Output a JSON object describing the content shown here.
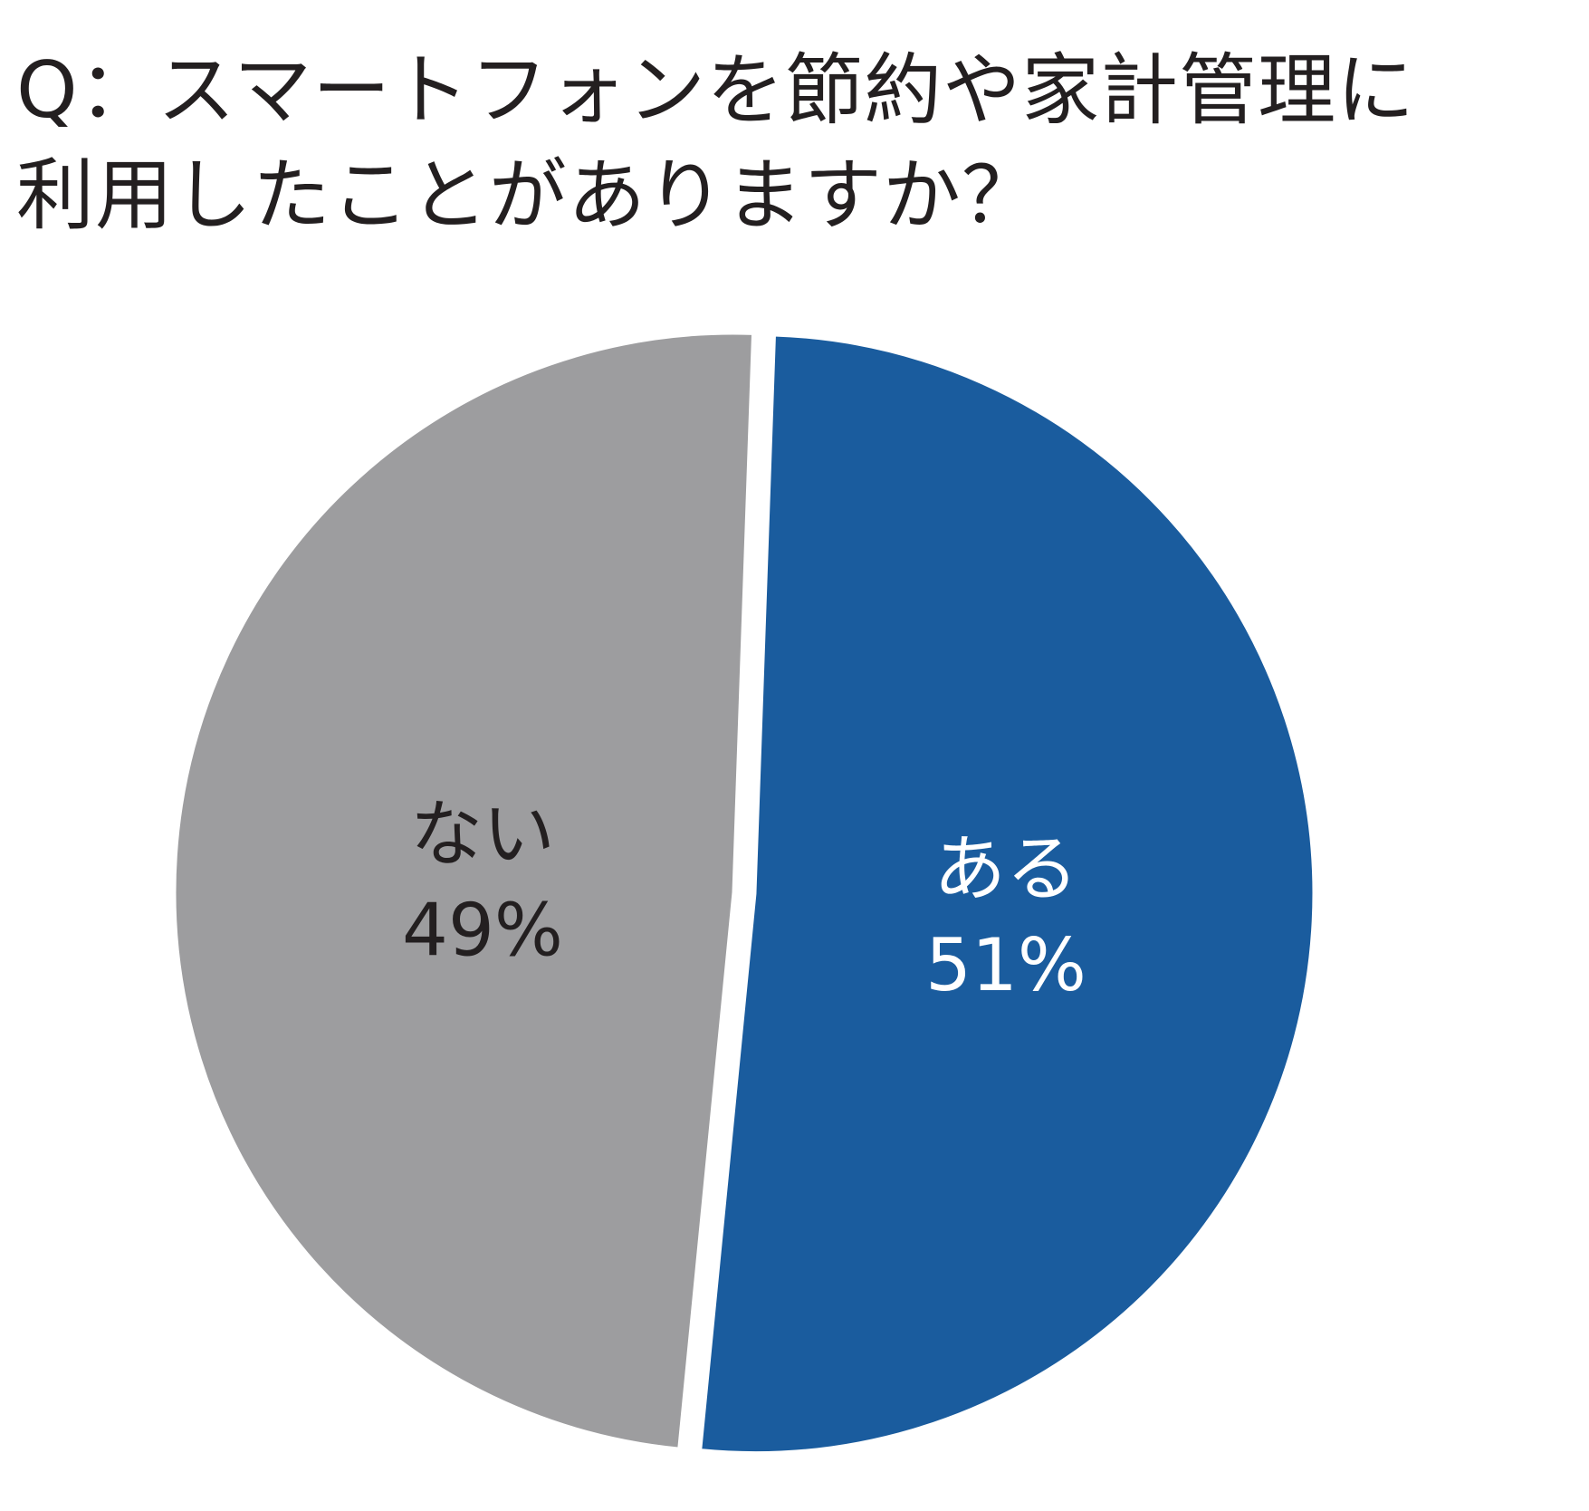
{
  "chart_data": {
    "type": "pie",
    "title_lines": [
      "Q：スマートフォンを節約や家計管理に",
      "利用したことがありますか？"
    ],
    "slices": [
      {
        "name": "ある",
        "value": 51,
        "value_label": "51%",
        "color": "#1a5c9e",
        "text_color": "#ffffff",
        "exploded": true
      },
      {
        "name": "ない",
        "value": 49,
        "value_label": "49%",
        "color": "#9d9d9f",
        "text_color": "#231f20",
        "exploded": false
      }
    ]
  }
}
